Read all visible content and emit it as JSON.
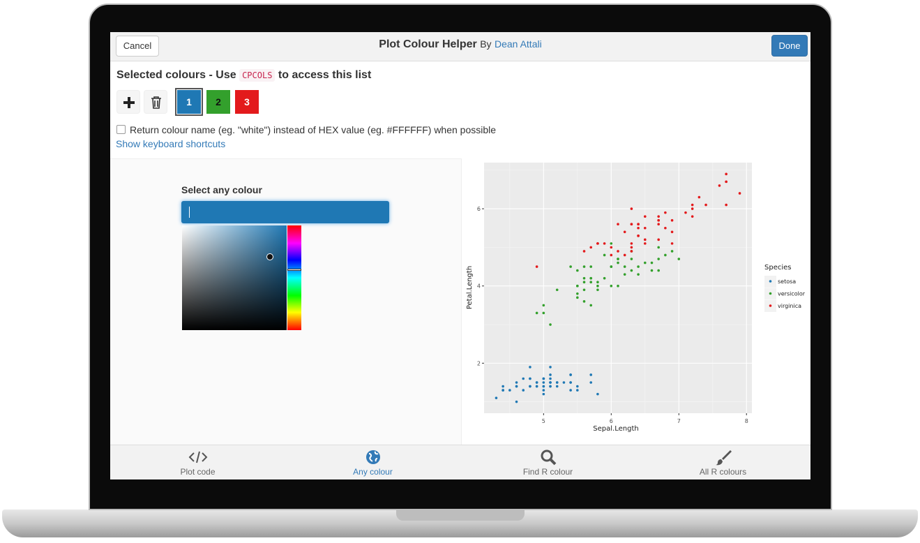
{
  "header": {
    "cancel": "Cancel",
    "title": "Plot Colour Helper",
    "by": "By",
    "author": "Dean Attali",
    "done": "Done"
  },
  "selected": {
    "heading_pre": "Selected colours - Use",
    "code": "CPCOLS",
    "heading_post": "to access this list",
    "swatches": [
      {
        "label": "1",
        "color": "#1f78b4"
      },
      {
        "label": "2",
        "color": "#33a02c"
      },
      {
        "label": "3",
        "color": "#e31a1c"
      }
    ],
    "checkbox_label": "Return colour name (eg. \"white\") instead of HEX value (eg. #FFFFFF) when possible",
    "shortcuts_link": "Show keyboard shortcuts"
  },
  "picker": {
    "label": "Select any colour",
    "color": "#1f78b4"
  },
  "chart_data": {
    "type": "scatter",
    "xlabel": "Sepal.Length",
    "ylabel": "Petal.Length",
    "legend_title": "Species",
    "legend": "right",
    "grid": true,
    "xlim": [
      4.12,
      8.08
    ],
    "ylim": [
      0.705,
      7.195
    ],
    "xticks": [
      5,
      6,
      7,
      8
    ],
    "yticks": [
      2,
      4,
      6
    ],
    "x_minor": [
      4.5,
      5.5,
      6.5,
      7.5
    ],
    "y_minor": [
      1,
      3,
      5,
      7
    ],
    "series": [
      {
        "name": "setosa",
        "color": "#1f78b4",
        "x": [
          5.1,
          4.9,
          4.7,
          4.6,
          5.0,
          5.4,
          4.6,
          5.0,
          4.4,
          4.9,
          5.4,
          4.8,
          4.8,
          4.3,
          5.8,
          5.7,
          5.4,
          5.1,
          5.7,
          5.1,
          5.4,
          5.1,
          4.6,
          5.1,
          4.8,
          5.0,
          5.0,
          5.2,
          5.2,
          4.7,
          4.8,
          5.4,
          5.2,
          5.5,
          4.9,
          5.0,
          5.5,
          4.9,
          4.4,
          5.1,
          5.0,
          4.5,
          4.4,
          5.0,
          5.1,
          4.8,
          5.1,
          4.6,
          5.3,
          5.0
        ],
        "values": [
          1.4,
          1.4,
          1.3,
          1.5,
          1.4,
          1.7,
          1.4,
          1.5,
          1.4,
          1.5,
          1.5,
          1.6,
          1.4,
          1.1,
          1.2,
          1.5,
          1.3,
          1.4,
          1.7,
          1.5,
          1.7,
          1.5,
          1.0,
          1.7,
          1.9,
          1.6,
          1.6,
          1.5,
          1.4,
          1.6,
          1.6,
          1.5,
          1.5,
          1.4,
          1.5,
          1.2,
          1.3,
          1.4,
          1.3,
          1.5,
          1.3,
          1.3,
          1.3,
          1.6,
          1.9,
          1.4,
          1.6,
          1.4,
          1.5,
          1.4
        ]
      },
      {
        "name": "versicolor",
        "color": "#33a02c",
        "x": [
          7.0,
          6.4,
          6.9,
          5.5,
          6.5,
          5.7,
          6.3,
          4.9,
          6.6,
          5.2,
          5.0,
          5.9,
          6.0,
          6.1,
          5.6,
          6.7,
          5.6,
          5.8,
          6.2,
          5.6,
          5.9,
          6.1,
          6.3,
          6.1,
          6.4,
          6.6,
          6.8,
          6.7,
          6.0,
          5.7,
          5.5,
          5.5,
          5.8,
          6.0,
          5.4,
          6.0,
          6.7,
          6.3,
          5.6,
          5.5,
          5.5,
          6.1,
          5.8,
          5.0,
          5.6,
          5.7,
          5.7,
          6.2,
          5.1,
          5.7
        ],
        "values": [
          4.7,
          4.5,
          4.9,
          4.0,
          4.6,
          4.5,
          4.7,
          3.3,
          4.6,
          3.9,
          3.5,
          4.2,
          4.0,
          4.7,
          3.6,
          4.4,
          4.5,
          4.1,
          4.5,
          3.9,
          4.8,
          4.0,
          4.9,
          4.7,
          4.3,
          4.4,
          4.8,
          5.0,
          4.5,
          3.5,
          3.8,
          3.7,
          3.9,
          5.1,
          4.5,
          4.5,
          4.7,
          4.4,
          4.1,
          4.0,
          4.4,
          4.6,
          4.0,
          3.3,
          4.2,
          4.2,
          4.2,
          4.3,
          3.0,
          4.1
        ]
      },
      {
        "name": "virginica",
        "color": "#e31a1c",
        "x": [
          6.3,
          5.8,
          7.1,
          6.3,
          6.5,
          7.6,
          4.9,
          7.3,
          6.7,
          7.2,
          6.5,
          6.4,
          6.8,
          5.7,
          5.8,
          6.4,
          6.5,
          7.7,
          7.7,
          6.0,
          6.9,
          5.6,
          7.7,
          6.3,
          6.7,
          7.2,
          6.2,
          6.1,
          6.4,
          7.2,
          7.4,
          7.9,
          6.4,
          6.3,
          6.1,
          7.7,
          6.3,
          6.4,
          6.0,
          6.9,
          6.7,
          6.9,
          5.8,
          6.8,
          6.7,
          6.7,
          6.3,
          6.5,
          6.2,
          5.9
        ],
        "values": [
          6.0,
          5.1,
          5.9,
          5.6,
          5.8,
          6.6,
          4.5,
          6.3,
          5.8,
          6.1,
          5.1,
          5.3,
          5.5,
          5.0,
          5.1,
          5.3,
          5.5,
          6.7,
          6.9,
          5.0,
          5.7,
          4.9,
          6.7,
          4.9,
          5.7,
          6.0,
          4.8,
          4.9,
          5.6,
          5.8,
          6.1,
          6.4,
          5.6,
          5.1,
          5.6,
          6.1,
          5.6,
          5.5,
          4.8,
          5.4,
          5.6,
          5.1,
          5.1,
          5.9,
          5.7,
          5.2,
          5.0,
          5.2,
          5.4,
          5.1
        ]
      }
    ]
  },
  "tabs": [
    {
      "label": "Plot code"
    },
    {
      "label": "Any colour"
    },
    {
      "label": "Find R colour"
    },
    {
      "label": "All R colours"
    }
  ],
  "active_tab": 1
}
